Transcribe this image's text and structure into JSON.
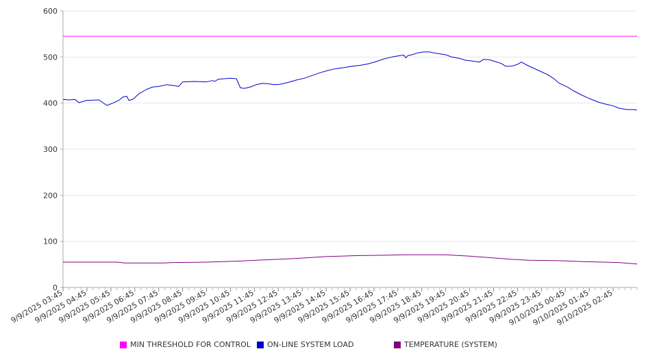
{
  "chart_data": {
    "type": "line",
    "title": "",
    "xlabel": "",
    "ylabel": "",
    "ylim": [
      0,
      600
    ],
    "y_ticks": [
      0,
      100,
      200,
      300,
      400,
      500,
      600
    ],
    "grid": "horizontal",
    "legend_position": "bottom",
    "x_tick_labels": [
      "9/9/2025 03:45",
      "9/9/2025 04:45",
      "9/9/2025 05:45",
      "9/9/2025 06:45",
      "9/9/2025 07:45",
      "9/9/2025 08:45",
      "9/9/2025 09:45",
      "9/9/2025 10:45",
      "9/9/2025 11:45",
      "9/9/2025 12:45",
      "9/9/2025 13:45",
      "9/9/2025 14:45",
      "9/9/2025 15:45",
      "9/9/2025 16:45",
      "9/9/2025 17:45",
      "9/9/2025 18:45",
      "9/9/2025 19:45",
      "9/9/2025 20:45",
      "9/9/2025 21:45",
      "9/9/2025 22:45",
      "9/9/2025 23:45",
      "9/10/2025 00:45",
      "9/10/2025 01:45",
      "9/10/2025 02:45"
    ],
    "x_range": [
      "9/9/2025 03:45",
      "9/10/2025 03:45"
    ],
    "series": [
      {
        "name": "MIN THRESHOLD FOR CONTROL",
        "color": "#ff00ff",
        "points": [
          [
            "9/9/2025 03:45",
            545
          ],
          [
            "9/10/2025 03:45",
            545
          ]
        ]
      },
      {
        "name": "ON-LINE SYSTEM LOAD",
        "color": "#0000cc",
        "points": [
          [
            "9/9/2025 03:45",
            408
          ],
          [
            "9/9/2025 04:00",
            407
          ],
          [
            "9/9/2025 04:15",
            408
          ],
          [
            "9/9/2025 04:25",
            401
          ],
          [
            "9/9/2025 04:45",
            406
          ],
          [
            "9/9/2025 05:15",
            407
          ],
          [
            "9/9/2025 05:35",
            395
          ],
          [
            "9/9/2025 05:50",
            400
          ],
          [
            "9/9/2025 06:05",
            406
          ],
          [
            "9/9/2025 06:15",
            413
          ],
          [
            "9/9/2025 06:25",
            415
          ],
          [
            "9/9/2025 06:30",
            406
          ],
          [
            "9/9/2025 06:40",
            408
          ],
          [
            "9/9/2025 06:55",
            420
          ],
          [
            "9/9/2025 07:15",
            430
          ],
          [
            "9/9/2025 07:30",
            435
          ],
          [
            "9/9/2025 07:45",
            436
          ],
          [
            "9/9/2025 08:05",
            440
          ],
          [
            "9/9/2025 08:25",
            438
          ],
          [
            "9/9/2025 08:35",
            436
          ],
          [
            "9/9/2025 08:45",
            446
          ],
          [
            "9/9/2025 09:15",
            447
          ],
          [
            "9/9/2025 09:45",
            446
          ],
          [
            "9/9/2025 10:00",
            449
          ],
          [
            "9/9/2025 10:05",
            447
          ],
          [
            "9/9/2025 10:15",
            452
          ],
          [
            "9/9/2025 10:30",
            453
          ],
          [
            "9/9/2025 10:45",
            454
          ],
          [
            "9/9/2025 11:00",
            453
          ],
          [
            "9/9/2025 11:10",
            433
          ],
          [
            "9/9/2025 11:20",
            432
          ],
          [
            "9/9/2025 11:35",
            435
          ],
          [
            "9/9/2025 11:50",
            440
          ],
          [
            "9/9/2025 12:05",
            443
          ],
          [
            "9/9/2025 12:20",
            442
          ],
          [
            "9/9/2025 12:35",
            440
          ],
          [
            "9/9/2025 12:50",
            441
          ],
          [
            "9/9/2025 13:10",
            445
          ],
          [
            "9/9/2025 13:30",
            450
          ],
          [
            "9/9/2025 13:50",
            454
          ],
          [
            "9/9/2025 14:10",
            460
          ],
          [
            "9/9/2025 14:30",
            466
          ],
          [
            "9/9/2025 14:50",
            471
          ],
          [
            "9/9/2025 15:10",
            475
          ],
          [
            "9/9/2025 15:30",
            477
          ],
          [
            "9/9/2025 15:50",
            480
          ],
          [
            "9/9/2025 16:10",
            482
          ],
          [
            "9/9/2025 16:30",
            485
          ],
          [
            "9/9/2025 16:50",
            490
          ],
          [
            "9/9/2025 17:10",
            496
          ],
          [
            "9/9/2025 17:30",
            500
          ],
          [
            "9/9/2025 17:50",
            503
          ],
          [
            "9/9/2025 18:00",
            504
          ],
          [
            "9/9/2025 18:05",
            498
          ],
          [
            "9/9/2025 18:10",
            503
          ],
          [
            "9/9/2025 18:20",
            505
          ],
          [
            "9/9/2025 18:35",
            509
          ],
          [
            "9/9/2025 18:50",
            511
          ],
          [
            "9/9/2025 19:05",
            511
          ],
          [
            "9/9/2025 19:15",
            509
          ],
          [
            "9/9/2025 19:30",
            507
          ],
          [
            "9/9/2025 19:45",
            505
          ],
          [
            "9/9/2025 20:00",
            500
          ],
          [
            "9/9/2025 20:20",
            497
          ],
          [
            "9/9/2025 20:35",
            493
          ],
          [
            "9/9/2025 20:55",
            491
          ],
          [
            "9/9/2025 21:10",
            489
          ],
          [
            "9/9/2025 21:20",
            495
          ],
          [
            "9/9/2025 21:35",
            494
          ],
          [
            "9/9/2025 21:50",
            490
          ],
          [
            "9/9/2025 22:05",
            486
          ],
          [
            "9/9/2025 22:15",
            480
          ],
          [
            "9/9/2025 22:30",
            480
          ],
          [
            "9/9/2025 22:45",
            484
          ],
          [
            "9/9/2025 22:55",
            489
          ],
          [
            "9/9/2025 23:10",
            482
          ],
          [
            "9/9/2025 23:25",
            476
          ],
          [
            "9/9/2025 23:40",
            470
          ],
          [
            "9/10/2025 00:00",
            462
          ],
          [
            "9/10/2025 00:15",
            454
          ],
          [
            "9/10/2025 00:30",
            443
          ],
          [
            "9/10/2025 00:50",
            435
          ],
          [
            "9/10/2025 01:05",
            427
          ],
          [
            "9/10/2025 01:25",
            418
          ],
          [
            "9/10/2025 01:45",
            410
          ],
          [
            "9/10/2025 02:05",
            403
          ],
          [
            "9/10/2025 02:25",
            398
          ],
          [
            "9/10/2025 02:45",
            394
          ],
          [
            "9/10/2025 03:00",
            389
          ],
          [
            "9/10/2025 03:20",
            386
          ],
          [
            "9/10/2025 03:35",
            386
          ],
          [
            "9/10/2025 03:45",
            385
          ]
        ]
      },
      {
        "name": "TEMPERATURE (SYSTEM)",
        "color": "#800080",
        "points": [
          [
            "9/9/2025 03:45",
            55
          ],
          [
            "9/9/2025 06:00",
            55
          ],
          [
            "9/9/2025 06:20",
            53
          ],
          [
            "9/9/2025 08:00",
            53
          ],
          [
            "9/9/2025 08:20",
            54
          ],
          [
            "9/9/2025 09:45",
            55
          ],
          [
            "9/9/2025 11:00",
            57
          ],
          [
            "9/9/2025 12:15",
            60
          ],
          [
            "9/9/2025 13:30",
            63
          ],
          [
            "9/9/2025 14:45",
            67
          ],
          [
            "9/9/2025 16:00",
            69
          ],
          [
            "9/9/2025 17:15",
            70
          ],
          [
            "9/9/2025 18:00",
            71
          ],
          [
            "9/9/2025 19:45",
            71
          ],
          [
            "9/9/2025 20:45",
            68
          ],
          [
            "9/9/2025 21:45",
            64
          ],
          [
            "9/9/2025 22:30",
            61
          ],
          [
            "9/9/2025 23:15",
            59
          ],
          [
            "9/10/2025 00:30",
            58
          ],
          [
            "9/10/2025 01:30",
            56
          ],
          [
            "9/10/2025 03:00",
            54
          ],
          [
            "9/10/2025 04:00",
            54
          ],
          [
            "9/10/2025 05:45",
            53
          ],
          [
            "9/10/2025 06:15",
            52
          ],
          [
            "9/10/2025 08:45",
            52
          ],
          [
            "9/10/2025 09:00",
            51
          ],
          [
            "9/10/2025 03:45",
            51
          ]
        ]
      }
    ]
  },
  "legend": {
    "items": [
      {
        "label": "MIN THRESHOLD FOR CONTROL",
        "color": "#ff00ff"
      },
      {
        "label": "ON-LINE SYSTEM LOAD",
        "color": "#0000cc"
      },
      {
        "label": "TEMPERATURE (SYSTEM)",
        "color": "#800080"
      }
    ]
  }
}
